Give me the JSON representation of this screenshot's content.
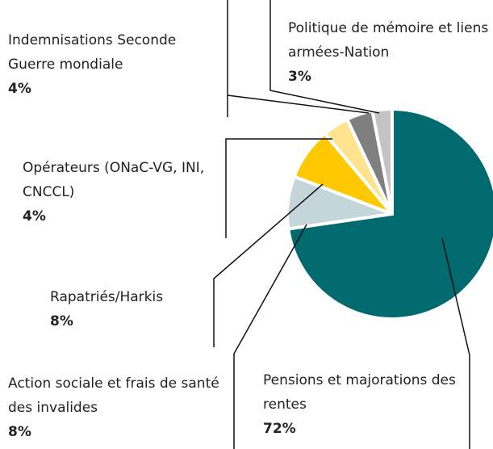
{
  "chart_data": {
    "type": "pie",
    "categories": [
      "Pensions et majorations des rentes",
      "Action sociale et frais de santé des invalides",
      "Rapatriés/Harkis",
      "Opérateurs (ONaC-VG, INI, CNCCL)",
      "Indemnisations Seconde Guerre mondiale",
      "Politique de mémoire et liens armées-Nation"
    ],
    "values": [
      72,
      8,
      8,
      4,
      4,
      3
    ],
    "value_labels": [
      "72%",
      "8%",
      "8%",
      "4%",
      "4%",
      "3%"
    ],
    "colors": [
      "#006a6e",
      "#c5d6db",
      "#ffc800",
      "#ffe38f",
      "#7f7f7f",
      "#c3c3c3"
    ]
  }
}
